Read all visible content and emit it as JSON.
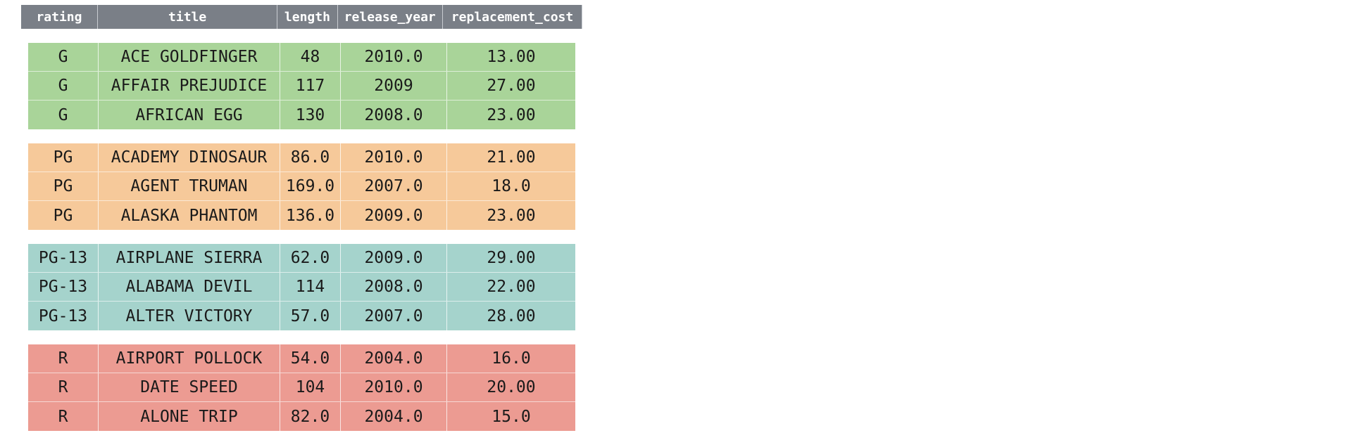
{
  "colors": {
    "header_bg": "#7a7f87",
    "group_G": "#a9d499",
    "group_PG": "#f6c99a",
    "group_PG13": "#a5d3cc",
    "group_R": "#ec9b92"
  },
  "columns": [
    "rating",
    "title",
    "length",
    "release_year",
    "replacement_cost"
  ],
  "groups": [
    {
      "key": "G",
      "rows": [
        [
          "G",
          "ACE GOLDFINGER",
          "48",
          "2010.0",
          "13.00"
        ],
        [
          "G",
          "AFFAIR PREJUDICE",
          "117",
          "2009",
          "27.00"
        ],
        [
          "G",
          "AFRICAN EGG",
          "130",
          "2008.0",
          "23.00"
        ]
      ]
    },
    {
      "key": "PG",
      "rows": [
        [
          "PG",
          "ACADEMY DINOSAUR",
          "86.0",
          "2010.0",
          "21.00"
        ],
        [
          "PG",
          "AGENT TRUMAN",
          "169.0",
          "2007.0",
          "18.0"
        ],
        [
          "PG",
          "ALASKA PHANTOM",
          "136.0",
          "2009.0",
          "23.00"
        ]
      ]
    },
    {
      "key": "PG-13",
      "rows": [
        [
          "PG-13",
          "AIRPLANE SIERRA",
          "62.0",
          "2009.0",
          "29.00"
        ],
        [
          "PG-13",
          "ALABAMA DEVIL",
          "114",
          "2008.0",
          "22.00"
        ],
        [
          "PG-13",
          "ALTER VICTORY",
          "57.0",
          "2007.0",
          "28.00"
        ]
      ]
    },
    {
      "key": "R",
      "rows": [
        [
          "R",
          "AIRPORT POLLOCK",
          "54.0",
          "2004.0",
          "16.0"
        ],
        [
          "R",
          "DATE SPEED",
          "104",
          "2010.0",
          "20.00"
        ],
        [
          "R",
          "ALONE TRIP",
          "82.0",
          "2004.0",
          "15.0"
        ]
      ]
    }
  ]
}
